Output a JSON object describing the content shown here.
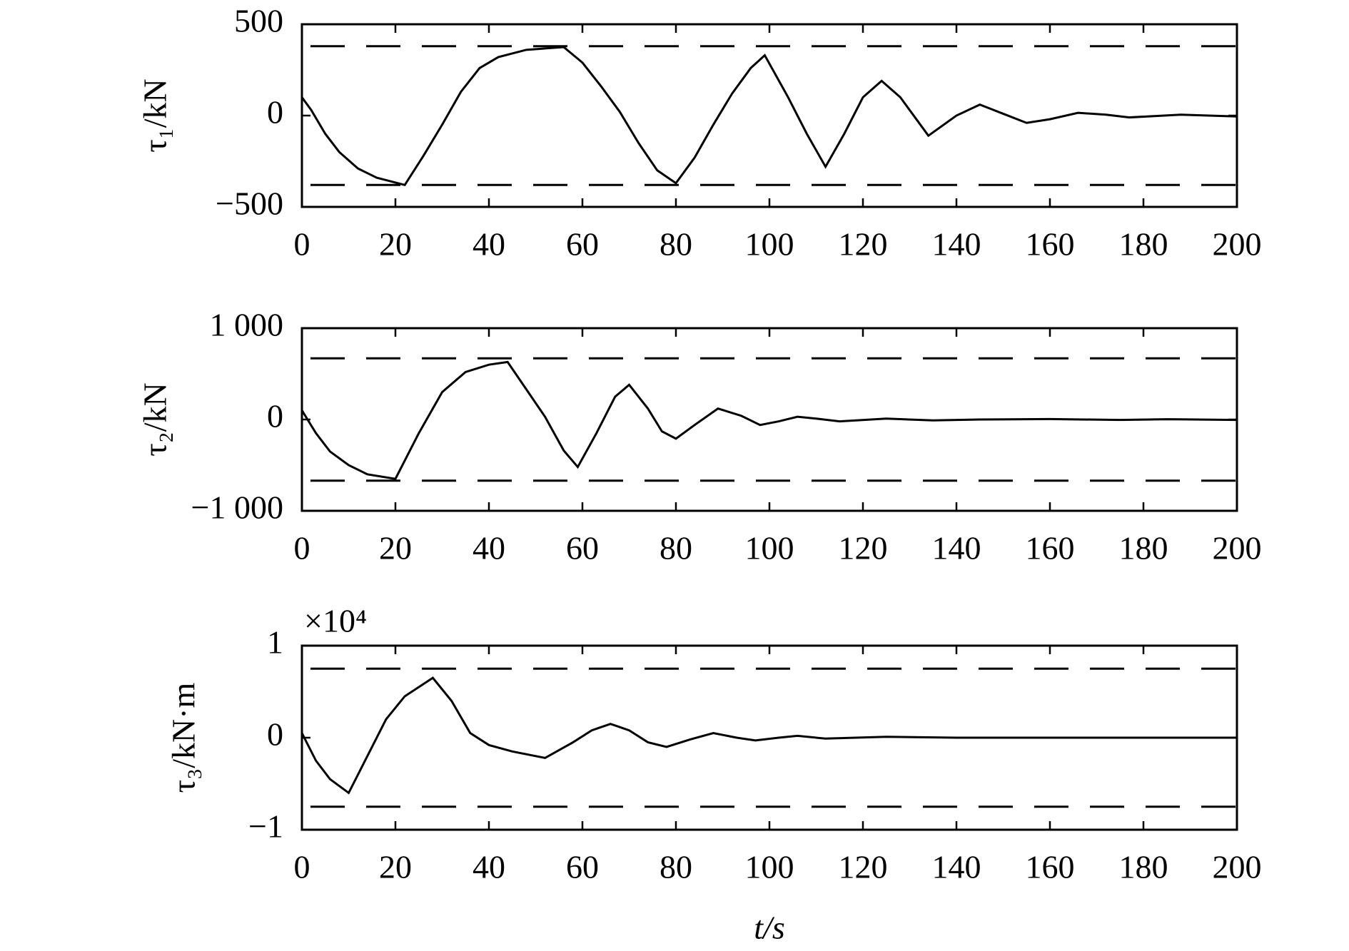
{
  "chart_data": [
    {
      "type": "line",
      "ylabel": "τ₁/kN",
      "color": "#000000",
      "x": [
        0,
        2,
        5,
        8,
        12,
        16,
        22,
        26,
        30,
        34,
        38,
        42,
        48,
        56,
        60,
        64,
        68,
        72,
        76,
        80,
        84,
        88,
        92,
        96,
        99,
        104,
        108,
        112,
        116,
        120,
        124,
        128,
        134,
        140,
        145,
        150,
        155,
        160,
        166,
        172,
        177,
        183,
        188,
        194,
        200
      ],
      "values": [
        100,
        30,
        -100,
        -200,
        -290,
        -340,
        -380,
        -220,
        -50,
        130,
        260,
        320,
        360,
        375,
        290,
        160,
        20,
        -150,
        -300,
        -370,
        -230,
        -50,
        120,
        260,
        330,
        100,
        -100,
        -280,
        -100,
        100,
        190,
        100,
        -110,
        0,
        60,
        10,
        -40,
        -20,
        15,
        5,
        -10,
        -2,
        5,
        0,
        -5
      ],
      "hlines": [
        380,
        -380
      ],
      "xlim": [
        0,
        200
      ],
      "xticks": [
        0,
        20,
        40,
        60,
        80,
        100,
        120,
        140,
        160,
        180,
        200
      ],
      "ylim": [
        -500,
        500
      ],
      "yticks": [
        {
          "value": -500,
          "label": "−500"
        },
        0,
        500
      ]
    },
    {
      "type": "line",
      "ylabel": "τ₂/kN",
      "color": "#000000",
      "x": [
        0,
        3,
        6,
        10,
        14,
        20,
        25,
        30,
        35,
        40,
        44,
        48,
        52,
        56,
        59,
        63,
        67,
        70,
        74,
        77,
        80,
        84,
        89,
        94,
        98,
        102,
        106,
        110,
        115,
        125,
        135,
        145,
        160,
        175,
        185,
        200
      ],
      "values": [
        100,
        -150,
        -350,
        -500,
        -600,
        -650,
        -150,
        300,
        520,
        600,
        630,
        330,
        30,
        -340,
        -520,
        -150,
        250,
        380,
        120,
        -130,
        -210,
        -60,
        120,
        40,
        -60,
        -20,
        30,
        10,
        -20,
        10,
        -10,
        0,
        5,
        -5,
        3,
        -5
      ],
      "hlines": [
        670,
        -670
      ],
      "xlim": [
        0,
        200
      ],
      "xticks": [
        0,
        20,
        40,
        60,
        80,
        100,
        120,
        140,
        160,
        180,
        200
      ],
      "ylim": [
        -1000,
        1000
      ],
      "yticks": [
        {
          "value": -1000,
          "label": "−1 000"
        },
        0,
        {
          "value": 1000,
          "label": "1 000"
        }
      ]
    },
    {
      "type": "line",
      "ylabel": "τ₃/kN·m",
      "xlabel": "t/s",
      "y_multiplier": "×10⁴",
      "color": "#000000",
      "x": [
        0,
        3,
        6,
        10,
        14,
        18,
        22,
        28,
        32,
        36,
        40,
        45,
        52,
        58,
        62,
        66,
        70,
        74,
        78,
        83,
        88,
        93,
        97,
        102,
        106,
        112,
        125,
        140,
        160,
        180,
        200
      ],
      "values": [
        0.05,
        -0.25,
        -0.45,
        -0.6,
        -0.2,
        0.2,
        0.45,
        0.65,
        0.4,
        0.05,
        -0.08,
        -0.15,
        -0.22,
        -0.05,
        0.08,
        0.15,
        0.08,
        -0.05,
        -0.1,
        -0.02,
        0.05,
        0,
        -0.03,
        0,
        0.02,
        -0.01,
        0.01,
        0,
        0,
        0,
        0
      ],
      "hlines": [
        0.75,
        -0.75
      ],
      "xlim": [
        0,
        200
      ],
      "xticks": [
        0,
        20,
        40,
        60,
        80,
        100,
        120,
        140,
        160,
        180,
        200
      ],
      "ylim": [
        -1,
        1
      ],
      "yticks": [
        {
          "value": -1,
          "label": "−1"
        },
        0,
        1
      ]
    }
  ]
}
